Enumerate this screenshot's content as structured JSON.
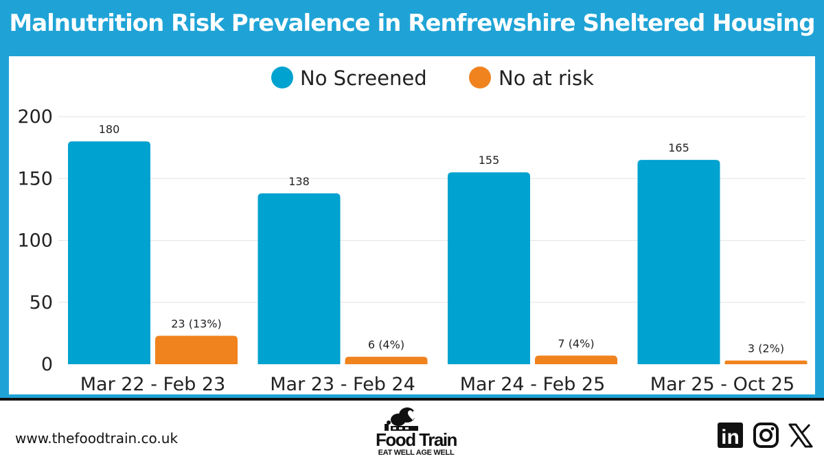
{
  "title": "Malnutrition Risk Prevalence in Renfrewshire Sheltered Housing",
  "colors": {
    "frame": "#1fa3d6",
    "screened": "#00a2cf",
    "at_risk": "#f0831e"
  },
  "chart_data": {
    "type": "bar",
    "categories": [
      "Mar 22 - Feb 23",
      "Mar 23 - Feb 24",
      "Mar 24 - Feb 25",
      "Mar 25 - Oct 25"
    ],
    "series": [
      {
        "name": "No Screened",
        "values": [
          180,
          138,
          155,
          165
        ],
        "labels": [
          "180",
          "138",
          "155",
          "165"
        ],
        "color": "#00a2cf"
      },
      {
        "name": "No at risk",
        "values": [
          23,
          6,
          7,
          3
        ],
        "labels": [
          "23 (13%)",
          "6 (4%)",
          "7 (4%)",
          "3 (2%)"
        ],
        "color": "#f0831e"
      }
    ],
    "ylim": [
      0,
      200
    ],
    "yticks": [
      0,
      50,
      100,
      150,
      200
    ],
    "grid": true,
    "legend": "top-center"
  },
  "footer": {
    "website": "www.thefoodtrain.co.uk",
    "brand": "Food Train",
    "tagline": "EAT WELL AGE WELL",
    "social_icons": [
      "linkedin-icon",
      "instagram-icon",
      "x-icon"
    ],
    "linkedin_text": "in"
  }
}
